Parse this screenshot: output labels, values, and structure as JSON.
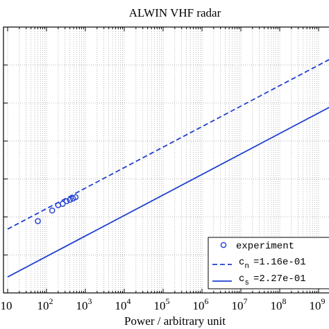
{
  "chart_data": {
    "type": "scatter",
    "title": "ALWIN VHF radar",
    "xlabel": "Power / arbitrary unit",
    "ylabel": "",
    "x_scale": "log",
    "xlim": [
      10,
      1000000000
    ],
    "x_ticks": [
      {
        "value": 10,
        "base": "10",
        "exp": ""
      },
      {
        "value": 100,
        "base": "10",
        "exp": "2"
      },
      {
        "value": 1000,
        "base": "10",
        "exp": "3"
      },
      {
        "value": 10000,
        "base": "10",
        "exp": "4"
      },
      {
        "value": 100000,
        "base": "10",
        "exp": "5"
      },
      {
        "value": 1000000,
        "base": "10",
        "exp": "6"
      },
      {
        "value": 10000000,
        "base": "10",
        "exp": "7"
      },
      {
        "value": 100000000,
        "base": "10",
        "exp": "8"
      },
      {
        "value": 1000000000,
        "base": "10",
        "exp": "9"
      }
    ],
    "ylim": [
      0,
      1
    ],
    "grid": true,
    "legend_position": "bottom-right",
    "series": [
      {
        "name": "experiment",
        "kind": "markers",
        "marker": "circle",
        "color": "#1f3fd0",
        "points": [
          {
            "x": 60,
            "y": 0.27
          },
          {
            "x": 140,
            "y": 0.31
          },
          {
            "x": 200,
            "y": 0.33
          },
          {
            "x": 260,
            "y": 0.335
          },
          {
            "x": 330,
            "y": 0.345
          },
          {
            "x": 400,
            "y": 0.35
          },
          {
            "x": 480,
            "y": 0.355
          },
          {
            "x": 560,
            "y": 0.36
          }
        ]
      },
      {
        "name": "c",
        "subscript": "n",
        "value_text": "=1.16e-01",
        "kind": "line",
        "dash": "dashed",
        "color": "#1f3fd0",
        "points": [
          {
            "x": 10,
            "y": 0.24
          },
          {
            "x": 2000000000,
            "y": 0.88
          }
        ]
      },
      {
        "name": "c",
        "subscript": "s",
        "value_text": "=2.27e-01",
        "kind": "line",
        "dash": "solid",
        "color": "#1f3fd0",
        "points": [
          {
            "x": 10,
            "y": 0.06
          },
          {
            "x": 2000000000,
            "y": 0.7
          }
        ]
      }
    ]
  }
}
